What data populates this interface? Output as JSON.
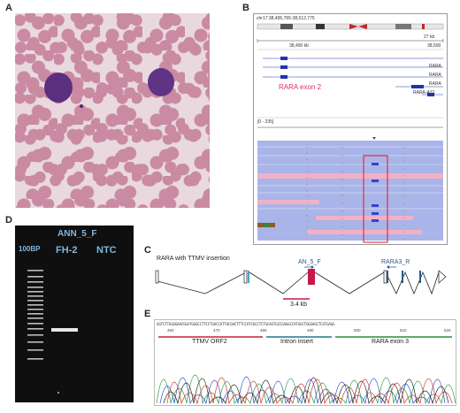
{
  "labels": {
    "a": "A",
    "b": "B",
    "c": "C",
    "d": "D",
    "e": "E"
  },
  "panel_b": {
    "locus": "chr17:38,495,765-38,512,775",
    "ideogram_bands": [
      "p13.3",
      "p13.2",
      "p13.1",
      "p12",
      "p11.2",
      "p11.1",
      "q11.2",
      "q12",
      "q21.1",
      "q21.31"
    ],
    "scale_label": "27 kb",
    "coord_left": "38,490 kb",
    "coord_right": "38,500",
    "track_range": "[0 - 235]",
    "genes": [
      "RARA",
      "RARA",
      "RARA",
      "RARA-AS1"
    ],
    "exon_label": "RARA exon 2"
  },
  "panel_c": {
    "title": "RARA with TTMV insertion",
    "primer_f": "AN_5_F",
    "primer_r": "RARA3_R",
    "size_label": "3.4 kb",
    "colors": {
      "insert": "#c8174a",
      "primer": "#2a5a8a"
    }
  },
  "panel_d": {
    "header": "ANN_5_F",
    "ladder": "100BP",
    "lanes": [
      "FH-2",
      "NTC"
    ]
  },
  "panel_e": {
    "ticks": [
      "460",
      "470",
      "480",
      "490",
      "500",
      "510",
      "520"
    ],
    "segments": [
      {
        "label": "TTMV ORF2",
        "color": "#c0272d"
      },
      {
        "label": "Intron insert",
        "color": "#1f7a8c"
      },
      {
        "label": "RARA exon 3",
        "color": "#2e8b3a"
      }
    ],
    "sequence": "GGTCTTGGGGAACGGATGGGCCTTCCTGACCATTACGACTTTCCATCGCCTCTGCAGTGCCGAGGCCATGGCTGGGAGCTCGTGAGG"
  }
}
